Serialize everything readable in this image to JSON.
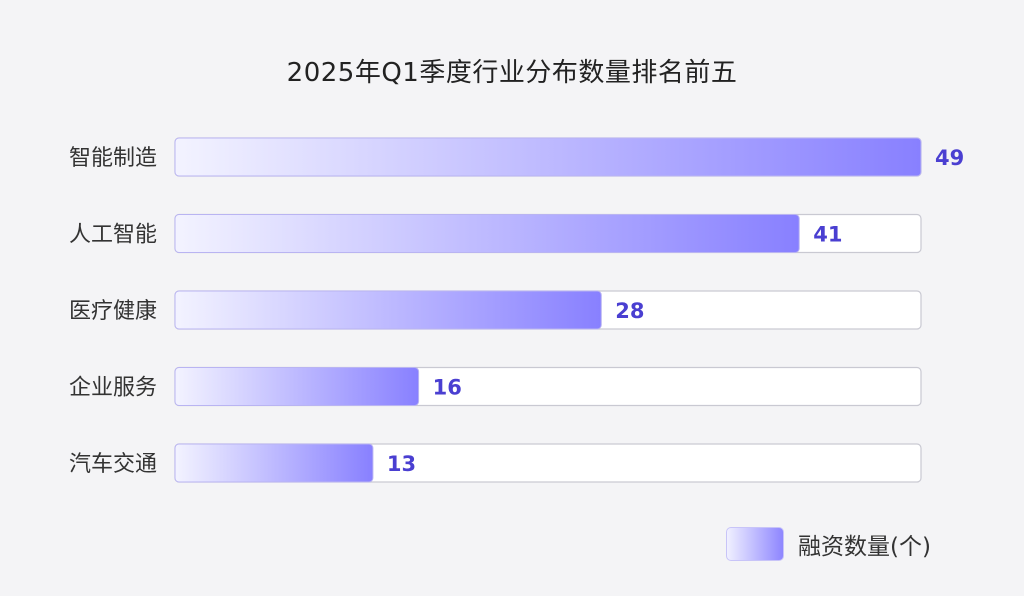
{
  "chart_data": {
    "type": "bar",
    "orientation": "horizontal",
    "title": "2025年Q1季度行业分布数量排名前五",
    "categories": [
      "智能制造",
      "人工智能",
      "医疗健康",
      "企业服务",
      "汽车交通"
    ],
    "series": [
      {
        "name": "融资数量(个)",
        "values": [
          49,
          41,
          28,
          16,
          13
        ]
      }
    ],
    "xlim": [
      0,
      49
    ],
    "grid": false,
    "legend": "bottom-right",
    "colors": {
      "bar_start": "#f3f3ff",
      "bar_end": "#8880ff",
      "track": "#ffffff",
      "value_text": "#4a3fd1"
    }
  }
}
